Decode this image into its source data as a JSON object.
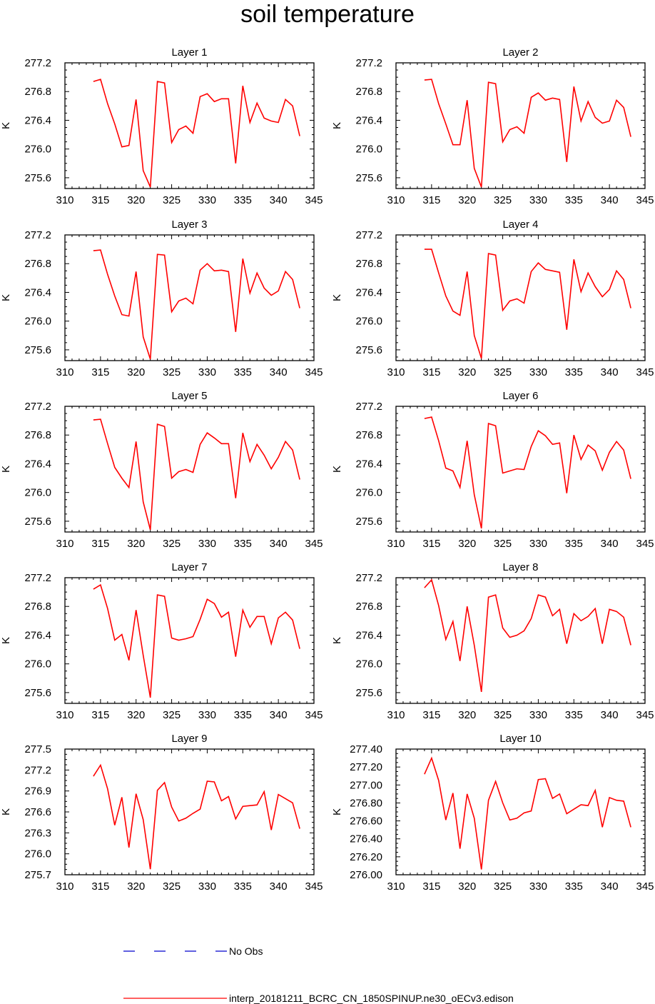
{
  "title": "soil temperature",
  "colors": {
    "model_line": "#ff0000",
    "obs_line": "#0000cc",
    "axis": "#000000"
  },
  "legend": [
    {
      "label": "No Obs",
      "style": "dashed",
      "color": "#0000cc"
    },
    {
      "label": "interp_20181211_BCRC_CN_1850SPINUP.ne30_oECv3.edison",
      "style": "solid",
      "color": "#ff0000"
    }
  ],
  "chart_data": [
    {
      "type": "line",
      "title": "Layer 1",
      "ylabel": "K",
      "xlim": [
        310,
        345
      ],
      "ylim": [
        275.45,
        277.2
      ],
      "xticks": [
        "310",
        "315",
        "320",
        "325",
        "330",
        "335",
        "340",
        "345"
      ],
      "yticks": [
        "277.2",
        "276.8",
        "276.4",
        "276.0",
        "275.6"
      ],
      "ytick_values": [
        277.2,
        276.8,
        276.4,
        276.0,
        275.6
      ],
      "x": [
        314,
        315,
        316,
        317,
        318,
        319,
        320,
        321,
        322,
        323,
        324,
        325,
        326,
        327,
        328,
        329,
        330,
        331,
        332,
        333,
        334,
        335,
        336,
        337,
        338,
        339,
        340,
        341,
        342,
        343
      ],
      "values": [
        276.94,
        276.97,
        276.63,
        276.35,
        276.03,
        276.05,
        276.69,
        275.7,
        275.47,
        276.94,
        276.92,
        276.09,
        276.27,
        276.32,
        276.22,
        276.73,
        276.77,
        276.66,
        276.7,
        276.7,
        275.8,
        276.88,
        276.37,
        276.64,
        276.43,
        276.39,
        276.37,
        276.69,
        276.6,
        276.18
      ]
    },
    {
      "type": "line",
      "title": "Layer 2",
      "ylabel": "K",
      "xlim": [
        310,
        345
      ],
      "ylim": [
        275.45,
        277.2
      ],
      "xticks": [
        "310",
        "315",
        "320",
        "325",
        "330",
        "335",
        "340",
        "345"
      ],
      "yticks": [
        "277.2",
        "276.8",
        "276.4",
        "276.0",
        "275.6"
      ],
      "ytick_values": [
        277.2,
        276.8,
        276.4,
        276.0,
        275.6
      ],
      "x": [
        314,
        315,
        316,
        317,
        318,
        319,
        320,
        321,
        322,
        323,
        324,
        325,
        326,
        327,
        328,
        329,
        330,
        331,
        332,
        333,
        334,
        335,
        336,
        337,
        338,
        339,
        340,
        341,
        342,
        343
      ],
      "values": [
        276.96,
        276.97,
        276.63,
        276.35,
        276.06,
        276.06,
        276.68,
        275.73,
        275.47,
        276.93,
        276.91,
        276.1,
        276.27,
        276.31,
        276.22,
        276.72,
        276.78,
        276.68,
        276.71,
        276.69,
        275.82,
        276.87,
        276.39,
        276.66,
        276.44,
        276.36,
        276.39,
        276.68,
        276.58,
        276.17
      ]
    },
    {
      "type": "line",
      "title": "Layer 3",
      "ylabel": "K",
      "xlim": [
        310,
        345
      ],
      "ylim": [
        275.45,
        277.2
      ],
      "xticks": [
        "310",
        "315",
        "320",
        "325",
        "330",
        "335",
        "340",
        "345"
      ],
      "yticks": [
        "277.2",
        "276.8",
        "276.4",
        "276.0",
        "275.6"
      ],
      "ytick_values": [
        277.2,
        276.8,
        276.4,
        276.0,
        275.6
      ],
      "x": [
        314,
        315,
        316,
        317,
        318,
        319,
        320,
        321,
        322,
        323,
        324,
        325,
        326,
        327,
        328,
        329,
        330,
        331,
        332,
        333,
        334,
        335,
        336,
        337,
        338,
        339,
        340,
        341,
        342,
        343
      ],
      "values": [
        276.98,
        276.99,
        276.65,
        276.35,
        276.09,
        276.07,
        276.69,
        275.78,
        275.47,
        276.93,
        276.92,
        276.13,
        276.28,
        276.32,
        276.24,
        276.71,
        276.8,
        276.7,
        276.71,
        276.69,
        275.85,
        276.87,
        276.39,
        276.67,
        276.46,
        276.36,
        276.42,
        276.69,
        276.58,
        276.18
      ]
    },
    {
      "type": "line",
      "title": "Layer 4",
      "ylabel": "K",
      "xlim": [
        310,
        345
      ],
      "ylim": [
        275.45,
        277.2
      ],
      "xticks": [
        "310",
        "315",
        "320",
        "325",
        "330",
        "335",
        "340",
        "345"
      ],
      "yticks": [
        "277.2",
        "276.8",
        "276.4",
        "276.0",
        "275.6"
      ],
      "ytick_values": [
        277.2,
        276.8,
        276.4,
        276.0,
        275.6
      ],
      "x": [
        314,
        315,
        316,
        317,
        318,
        319,
        320,
        321,
        322,
        323,
        324,
        325,
        326,
        327,
        328,
        329,
        330,
        331,
        332,
        333,
        334,
        335,
        336,
        337,
        338,
        339,
        340,
        341,
        342,
        343
      ],
      "values": [
        277.0,
        277.0,
        276.67,
        276.35,
        276.14,
        276.08,
        276.69,
        275.8,
        275.48,
        276.94,
        276.92,
        276.15,
        276.28,
        276.31,
        276.25,
        276.69,
        276.81,
        276.72,
        276.7,
        276.68,
        275.88,
        276.86,
        276.41,
        276.67,
        276.48,
        276.34,
        276.44,
        276.7,
        276.58,
        276.18
      ]
    },
    {
      "type": "line",
      "title": "Layer 5",
      "ylabel": "K",
      "xlim": [
        310,
        345
      ],
      "ylim": [
        275.45,
        277.2
      ],
      "xticks": [
        "310",
        "315",
        "320",
        "325",
        "330",
        "335",
        "340",
        "345"
      ],
      "yticks": [
        "277.2",
        "276.8",
        "276.4",
        "276.0",
        "275.6"
      ],
      "ytick_values": [
        277.2,
        276.8,
        276.4,
        276.0,
        275.6
      ],
      "x": [
        314,
        315,
        316,
        317,
        318,
        319,
        320,
        321,
        322,
        323,
        324,
        325,
        326,
        327,
        328,
        329,
        330,
        331,
        332,
        333,
        334,
        335,
        336,
        337,
        338,
        339,
        340,
        341,
        342,
        343
      ],
      "values": [
        277.01,
        277.02,
        276.68,
        276.35,
        276.2,
        276.07,
        276.71,
        275.87,
        275.48,
        276.95,
        276.92,
        276.2,
        276.29,
        276.32,
        276.28,
        276.67,
        276.83,
        276.76,
        276.68,
        276.68,
        275.92,
        276.83,
        276.43,
        276.67,
        276.52,
        276.33,
        276.49,
        276.71,
        276.59,
        276.18
      ]
    },
    {
      "type": "line",
      "title": "Layer 6",
      "ylabel": "K",
      "xlim": [
        310,
        345
      ],
      "ylim": [
        275.45,
        277.2
      ],
      "xticks": [
        "310",
        "315",
        "320",
        "325",
        "330",
        "335",
        "340",
        "345"
      ],
      "yticks": [
        "277.2",
        "276.8",
        "276.4",
        "276.0",
        "275.6"
      ],
      "ytick_values": [
        277.2,
        276.8,
        276.4,
        276.0,
        275.6
      ],
      "x": [
        314,
        315,
        316,
        317,
        318,
        319,
        320,
        321,
        322,
        323,
        324,
        325,
        326,
        327,
        328,
        329,
        330,
        331,
        332,
        333,
        334,
        335,
        336,
        337,
        338,
        339,
        340,
        341,
        342,
        343
      ],
      "values": [
        277.03,
        277.05,
        276.72,
        276.34,
        276.3,
        276.07,
        276.72,
        275.97,
        275.5,
        276.96,
        276.93,
        276.27,
        276.3,
        276.33,
        276.32,
        276.64,
        276.86,
        276.79,
        276.67,
        276.69,
        275.99,
        276.8,
        276.46,
        276.66,
        276.58,
        276.31,
        276.56,
        276.71,
        276.59,
        276.19
      ]
    },
    {
      "type": "line",
      "title": "Layer 7",
      "ylabel": "K",
      "xlim": [
        310,
        345
      ],
      "ylim": [
        275.45,
        277.2
      ],
      "xticks": [
        "310",
        "315",
        "320",
        "325",
        "330",
        "335",
        "340",
        "345"
      ],
      "yticks": [
        "277.2",
        "276.8",
        "276.4",
        "276.0",
        "275.6"
      ],
      "ytick_values": [
        277.2,
        276.8,
        276.4,
        276.0,
        275.6
      ],
      "x": [
        314,
        315,
        316,
        317,
        318,
        319,
        320,
        321,
        322,
        323,
        324,
        325,
        326,
        327,
        328,
        329,
        330,
        331,
        332,
        333,
        334,
        335,
        336,
        337,
        338,
        339,
        340,
        341,
        342,
        343
      ],
      "values": [
        277.04,
        277.1,
        276.77,
        276.33,
        276.41,
        276.05,
        276.75,
        276.12,
        275.53,
        276.96,
        276.94,
        276.36,
        276.33,
        276.35,
        276.38,
        276.62,
        276.9,
        276.84,
        276.65,
        276.72,
        276.1,
        276.75,
        276.51,
        276.66,
        276.66,
        276.28,
        276.64,
        276.72,
        276.61,
        276.21
      ]
    },
    {
      "type": "line",
      "title": "Layer 8",
      "ylabel": "K",
      "xlim": [
        310,
        345
      ],
      "ylim": [
        275.45,
        277.2
      ],
      "xticks": [
        "310",
        "315",
        "320",
        "325",
        "330",
        "335",
        "340",
        "345"
      ],
      "yticks": [
        "277.2",
        "276.8",
        "276.4",
        "276.0",
        "275.6"
      ],
      "ytick_values": [
        277.2,
        276.8,
        276.4,
        276.0,
        275.6
      ],
      "x": [
        314,
        315,
        316,
        317,
        318,
        319,
        320,
        321,
        322,
        323,
        324,
        325,
        326,
        327,
        328,
        329,
        330,
        331,
        332,
        333,
        334,
        335,
        336,
        337,
        338,
        339,
        340,
        341,
        342,
        343
      ],
      "values": [
        277.06,
        277.17,
        276.81,
        276.34,
        276.59,
        276.04,
        276.8,
        276.26,
        275.61,
        276.93,
        276.96,
        276.5,
        276.37,
        276.4,
        276.46,
        276.63,
        276.96,
        276.93,
        276.67,
        276.76,
        276.28,
        276.7,
        276.6,
        276.66,
        276.77,
        276.28,
        276.76,
        276.73,
        276.65,
        276.26
      ]
    },
    {
      "type": "line",
      "title": "Layer 9",
      "ylabel": "K",
      "xlim": [
        310,
        345
      ],
      "ylim": [
        275.7,
        277.5
      ],
      "xticks": [
        "310",
        "315",
        "320",
        "325",
        "330",
        "335",
        "340",
        "345"
      ],
      "yticks": [
        "277.5",
        "277.2",
        "276.9",
        "276.6",
        "276.3",
        "276.0",
        "275.7"
      ],
      "ytick_values": [
        277.5,
        277.2,
        276.9,
        276.6,
        276.3,
        276.0,
        275.7
      ],
      "x": [
        314,
        315,
        316,
        317,
        318,
        319,
        320,
        321,
        322,
        323,
        324,
        325,
        326,
        327,
        328,
        329,
        330,
        331,
        332,
        333,
        334,
        335,
        336,
        337,
        338,
        339,
        340,
        341,
        342,
        343
      ],
      "values": [
        277.11,
        277.27,
        276.93,
        276.41,
        276.81,
        276.09,
        276.86,
        276.49,
        275.78,
        276.91,
        277.02,
        276.67,
        276.47,
        276.51,
        276.58,
        276.64,
        277.04,
        277.03,
        276.76,
        276.82,
        276.5,
        276.68,
        276.69,
        276.7,
        276.89,
        276.34,
        276.85,
        276.79,
        276.73,
        276.36
      ]
    },
    {
      "type": "line",
      "title": "Layer 10",
      "ylabel": "K",
      "xlim": [
        310,
        345
      ],
      "ylim": [
        276.0,
        277.4
      ],
      "xticks": [
        "310",
        "315",
        "320",
        "325",
        "330",
        "335",
        "340",
        "345"
      ],
      "yticks": [
        "277.40",
        "277.20",
        "277.00",
        "276.80",
        "276.60",
        "276.40",
        "276.20",
        "276.00"
      ],
      "ytick_values": [
        277.4,
        277.2,
        277.0,
        276.8,
        276.6,
        276.4,
        276.2,
        276.0
      ],
      "x": [
        314,
        315,
        316,
        317,
        318,
        319,
        320,
        321,
        322,
        323,
        324,
        325,
        326,
        327,
        328,
        329,
        330,
        331,
        332,
        333,
        334,
        335,
        336,
        337,
        338,
        339,
        340,
        341,
        342,
        343
      ],
      "values": [
        277.12,
        277.3,
        277.05,
        276.61,
        276.91,
        276.29,
        276.9,
        276.63,
        276.06,
        276.83,
        277.04,
        276.8,
        276.61,
        276.63,
        276.69,
        276.71,
        277.06,
        277.07,
        276.85,
        276.9,
        276.68,
        276.73,
        276.78,
        276.77,
        276.94,
        276.53,
        276.86,
        276.83,
        276.82,
        276.53
      ]
    }
  ]
}
